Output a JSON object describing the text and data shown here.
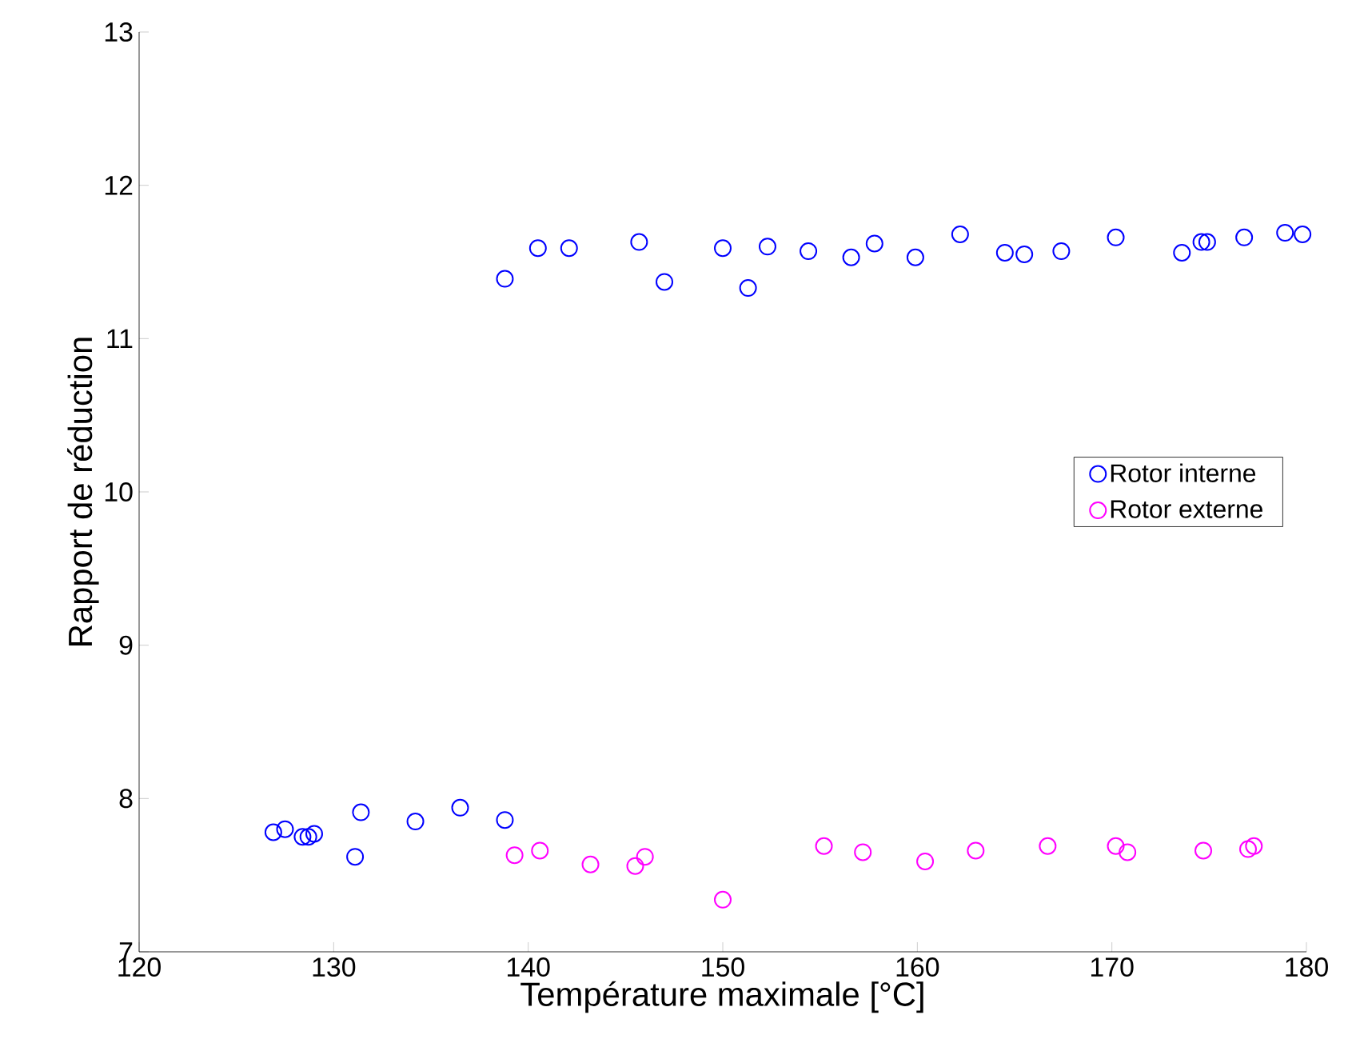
{
  "chart_data": {
    "type": "scatter",
    "xlabel": "Température maximale [°C]",
    "ylabel": "Rapport de réduction",
    "xlim": [
      120,
      180
    ],
    "ylim": [
      7,
      13
    ],
    "xticks": [
      120,
      130,
      140,
      150,
      160,
      170,
      180
    ],
    "yticks": [
      7,
      8,
      9,
      10,
      11,
      12,
      13
    ],
    "grid": false,
    "legend": "right",
    "marker": "circle",
    "series": [
      {
        "name": "Rotor interne",
        "color": "#0000ff",
        "x": [
          138.8,
          140.5,
          142.1,
          145.7,
          147.0,
          150.0,
          151.3,
          152.3,
          154.4,
          156.6,
          157.8,
          159.9,
          162.2,
          164.5,
          165.5,
          167.4,
          170.2,
          173.6,
          174.6,
          174.9,
          176.8,
          178.9,
          179.8,
          126.9,
          127.5,
          128.4,
          128.7,
          129.0,
          131.4,
          131.1,
          134.2,
          136.5,
          138.8
        ],
        "values": [
          11.39,
          11.59,
          11.59,
          11.63,
          11.37,
          11.59,
          11.33,
          11.6,
          11.57,
          11.53,
          11.62,
          11.53,
          11.68,
          11.56,
          11.55,
          11.57,
          11.66,
          11.56,
          11.63,
          11.63,
          11.66,
          11.69,
          11.68,
          7.78,
          7.8,
          7.75,
          7.75,
          7.77,
          7.91,
          7.62,
          7.85,
          7.94,
          7.86
        ]
      },
      {
        "name": "Rotor externe",
        "color": "#ff00ff",
        "x": [
          139.3,
          140.6,
          143.2,
          145.5,
          146.0,
          150.0,
          155.2,
          157.2,
          160.4,
          163.0,
          166.7,
          170.2,
          170.8,
          174.7,
          177.0,
          177.3
        ],
        "values": [
          7.63,
          7.66,
          7.57,
          7.56,
          7.62,
          7.34,
          7.69,
          7.65,
          7.59,
          7.66,
          7.69,
          7.69,
          7.65,
          7.66,
          7.67,
          7.69
        ]
      }
    ]
  }
}
